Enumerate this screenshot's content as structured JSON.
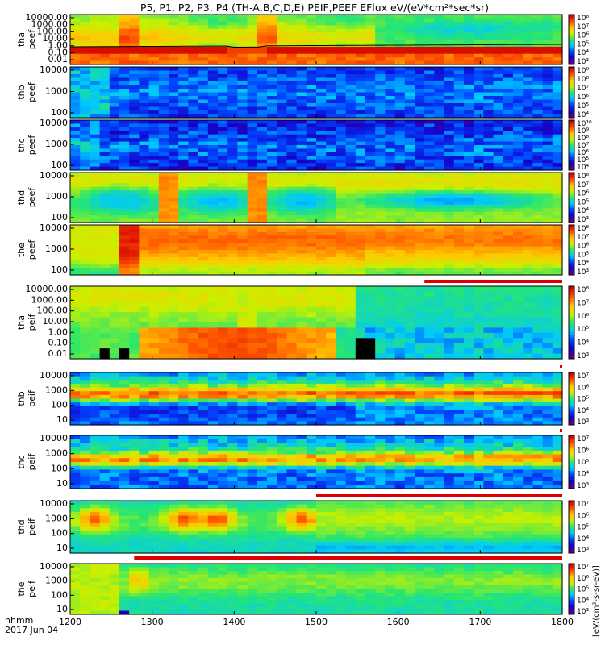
{
  "title": "P5, P1, P2, P3, P4 (TH-A,B,C,D,E) PEIF,PEEF EFlux eV/(eV*cm²*sec*sr)",
  "footer": {
    "time_label": "hhmm",
    "date_label": "2017 Jun 04"
  },
  "colors": {
    "bar_red": "#dd0000",
    "axis": "#000000"
  },
  "chart_data": {
    "type": "heatmap",
    "x_ticks": [
      "1200",
      "1300",
      "1400",
      "1500",
      "1600",
      "1700",
      "1800"
    ],
    "xlim": [
      1200,
      1800
    ],
    "colorbar_label": "[eV/(cm²-s-sr-eV)]",
    "panels": [
      {
        "ylabel": [
          "tha",
          "peef"
        ],
        "yticks": [
          "10000.00",
          "1000.00",
          "100.00",
          "10.00",
          "1.00",
          "0.10",
          "0.01"
        ],
        "cbar_ticks": [
          "10⁸",
          "10⁷",
          "10⁶",
          "10⁵",
          "10⁴",
          "10³"
        ],
        "style": "tha_peef"
      },
      {
        "ylabel": [
          "thb",
          "peef"
        ],
        "yticks": [
          "10000",
          "1000",
          "100"
        ],
        "cbar_ticks": [
          "10⁹",
          "10⁸",
          "10⁷",
          "10⁶",
          "10⁵",
          "10⁴"
        ],
        "style": "thb_peef"
      },
      {
        "ylabel": [
          "thc",
          "peef"
        ],
        "yticks": [
          "10000",
          "1000",
          "100"
        ],
        "cbar_ticks": [
          "10¹⁰",
          "10⁹",
          "10⁸",
          "10⁷",
          "10⁶",
          "10⁵",
          "10⁴"
        ],
        "style": "thc_peef"
      },
      {
        "ylabel": [
          "thd",
          "peef"
        ],
        "yticks": [
          "10000",
          "1000",
          "100"
        ],
        "cbar_ticks": [
          "10⁸",
          "10⁷",
          "10⁶",
          "10⁵",
          "10⁴",
          "10³"
        ],
        "style": "thd_peef"
      },
      {
        "ylabel": [
          "the",
          "peef"
        ],
        "yticks": [
          "10000",
          "1000",
          "100"
        ],
        "cbar_ticks": [
          "10⁸",
          "10⁷",
          "10⁶",
          "10⁵",
          "10⁴",
          "10³"
        ],
        "style": "the_peef"
      },
      {
        "ylabel": [
          "tha",
          "peif"
        ],
        "yticks": [
          "10000.00",
          "1000.00",
          "100.00",
          "10.00",
          "1.00",
          "0.10",
          "0.01"
        ],
        "cbar_ticks": [
          "10⁸",
          "10⁷",
          "10⁶",
          "10⁵",
          "10⁴",
          "10³"
        ],
        "style": "tha_peif"
      },
      {
        "ylabel": [
          "thb",
          "peif"
        ],
        "yticks": [
          "10000",
          "1000",
          "100",
          "10"
        ],
        "cbar_ticks": [
          "10⁷",
          "10⁶",
          "10⁵",
          "10⁴",
          "10³"
        ],
        "style": "thb_peif"
      },
      {
        "ylabel": [
          "thc",
          "peif"
        ],
        "yticks": [
          "10000",
          "1000",
          "100",
          "10"
        ],
        "cbar_ticks": [
          "10⁷",
          "10⁶",
          "10⁵",
          "10⁴",
          "10³"
        ],
        "style": "thc_peif"
      },
      {
        "ylabel": [
          "thd",
          "peif"
        ],
        "yticks": [
          "10000",
          "1000",
          "100",
          "10"
        ],
        "cbar_ticks": [
          "10⁷",
          "10⁶",
          "10⁵",
          "10⁴",
          "10³"
        ],
        "style": "thd_peif"
      },
      {
        "ylabel": [
          "the",
          "peif"
        ],
        "yticks": [
          "10000",
          "1000",
          "100",
          "10"
        ],
        "cbar_ticks": [
          "10⁷",
          "10⁶",
          "10⁵",
          "10⁴",
          "10³"
        ],
        "style": "the_peif"
      }
    ]
  }
}
